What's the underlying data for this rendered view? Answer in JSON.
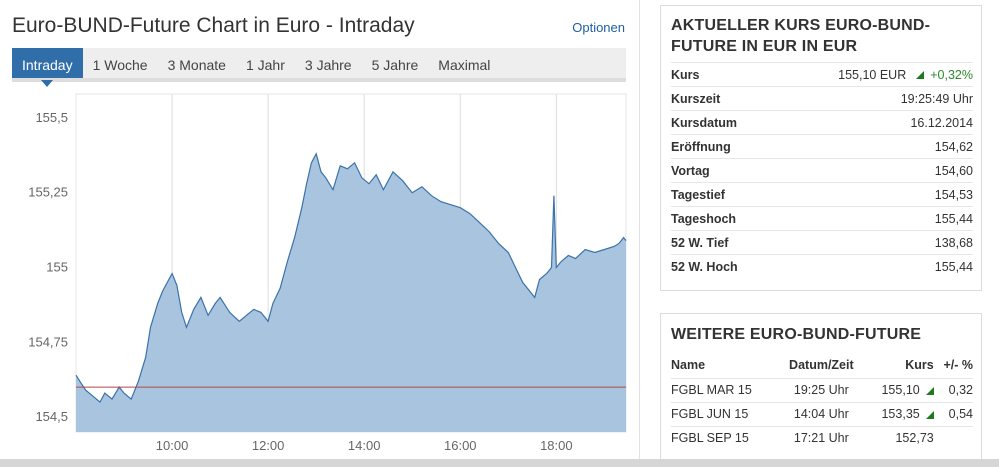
{
  "chart": {
    "title": "Euro-BUND-Future Chart in Euro - Intraday",
    "options_label": "Optionen",
    "tabs": [
      {
        "label": "Intraday",
        "active": true
      },
      {
        "label": "1 Woche",
        "active": false
      },
      {
        "label": "3 Monate",
        "active": false
      },
      {
        "label": "1 Jahr",
        "active": false
      },
      {
        "label": "3 Jahre",
        "active": false
      },
      {
        "label": "5 Jahre",
        "active": false
      },
      {
        "label": "Maximal",
        "active": false
      }
    ]
  },
  "chart_data": {
    "type": "area",
    "title": "",
    "xlabel": "",
    "ylabel": "",
    "xlim": [
      8.0,
      19.45
    ],
    "ylim": [
      154.45,
      155.58
    ],
    "x_ticks": [
      10,
      12,
      14,
      16,
      18
    ],
    "x_tick_labels": [
      "10:00",
      "12:00",
      "14:00",
      "16:00",
      "18:00"
    ],
    "y_ticks": [
      154.5,
      154.75,
      155,
      155.25,
      155.5
    ],
    "y_tick_labels": [
      "154,5",
      "154,75",
      "155",
      "155,25",
      "155,5"
    ],
    "reference_line": 154.6,
    "grid": "vertical",
    "colors": {
      "fill": "#a9c4df",
      "line": "#3a72aa",
      "reference": "#b04848"
    },
    "series": [
      {
        "x": [
          8.0,
          8.08,
          8.2,
          8.35,
          8.5,
          8.6,
          8.75,
          8.9,
          9.0,
          9.15,
          9.3,
          9.45,
          9.55,
          9.7,
          9.8,
          9.9,
          10.0,
          10.1,
          10.2,
          10.3,
          10.45,
          10.6,
          10.75,
          10.9,
          11.0,
          11.2,
          11.4,
          11.55,
          11.7,
          11.85,
          12.0,
          12.1,
          12.25,
          12.4,
          12.55,
          12.7,
          12.8,
          12.9,
          13.0,
          13.1,
          13.2,
          13.35,
          13.5,
          13.65,
          13.8,
          13.95,
          14.1,
          14.25,
          14.4,
          14.6,
          14.8,
          15.0,
          15.2,
          15.4,
          15.6,
          15.8,
          16.0,
          16.2,
          16.4,
          16.6,
          16.8,
          17.0,
          17.15,
          17.3,
          17.45,
          17.55,
          17.65,
          17.8,
          17.9,
          17.95,
          18.0,
          18.1,
          18.25,
          18.4,
          18.6,
          18.8,
          19.0,
          19.2,
          19.3,
          19.4,
          19.45
        ],
        "y": [
          154.64,
          154.62,
          154.59,
          154.57,
          154.55,
          154.58,
          154.56,
          154.6,
          154.58,
          154.56,
          154.62,
          154.7,
          154.8,
          154.88,
          154.92,
          154.95,
          154.98,
          154.94,
          154.85,
          154.8,
          154.86,
          154.9,
          154.84,
          154.88,
          154.9,
          154.85,
          154.82,
          154.84,
          154.86,
          154.85,
          154.82,
          154.88,
          154.93,
          155.02,
          155.1,
          155.2,
          155.28,
          155.35,
          155.38,
          155.32,
          155.3,
          155.26,
          155.34,
          155.33,
          155.35,
          155.3,
          155.28,
          155.31,
          155.26,
          155.32,
          155.29,
          155.25,
          155.27,
          155.24,
          155.22,
          155.21,
          155.2,
          155.18,
          155.15,
          155.12,
          155.08,
          155.05,
          155.0,
          154.95,
          154.92,
          154.9,
          154.96,
          154.98,
          155.0,
          155.24,
          155.0,
          155.02,
          155.04,
          155.03,
          155.06,
          155.05,
          155.06,
          155.07,
          155.08,
          155.1,
          155.09
        ]
      }
    ]
  },
  "quote": {
    "title": "AKTUELLER KURS EURO-BUND-FUTURE IN EUR IN EUR",
    "rows": [
      {
        "label": "Kurs",
        "value": "155,10 EUR",
        "change": "+0,32%",
        "trend": "up"
      },
      {
        "label": "Kurszeit",
        "value": "19:25:49 Uhr"
      },
      {
        "label": "Kursdatum",
        "value": "16.12.2014"
      },
      {
        "label": "Eröffnung",
        "value": "154,62"
      },
      {
        "label": "Vortag",
        "value": "154,60"
      },
      {
        "label": "Tagestief",
        "value": "154,53"
      },
      {
        "label": "Tageshoch",
        "value": "155,44"
      },
      {
        "label": "52 W. Tief",
        "value": "138,68"
      },
      {
        "label": "52 W. Hoch",
        "value": "155,44"
      }
    ]
  },
  "futures": {
    "title": "WEITERE EURO-BUND-FUTURE",
    "headers": {
      "name": "Name",
      "time": "Datum/Zeit",
      "price": "Kurs",
      "change": "+/- %"
    },
    "rows": [
      {
        "name": "FGBL MAR 15",
        "time": "19:25 Uhr",
        "price": "155,10",
        "change": "0,32",
        "trend": "up"
      },
      {
        "name": "FGBL JUN 15",
        "time": "14:04 Uhr",
        "price": "153,35",
        "change": "0,54",
        "trend": "up"
      },
      {
        "name": "FGBL SEP 15",
        "time": "17:21 Uhr",
        "price": "152,73",
        "change": "",
        "trend": ""
      }
    ]
  }
}
